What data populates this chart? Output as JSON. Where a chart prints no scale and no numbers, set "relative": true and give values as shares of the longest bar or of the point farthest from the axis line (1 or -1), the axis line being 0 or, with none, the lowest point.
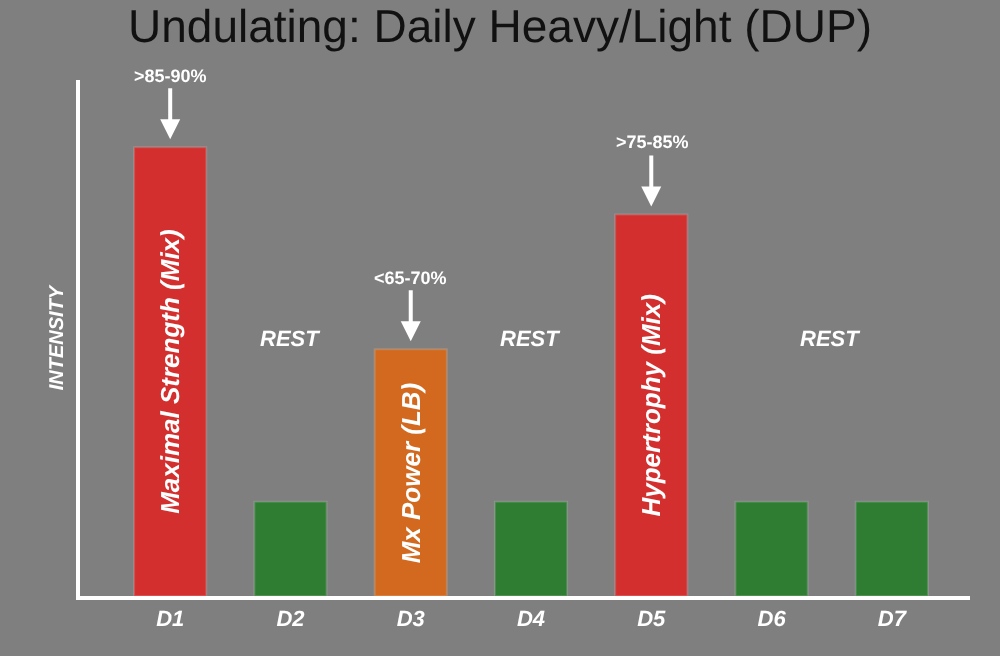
{
  "chart_data": {
    "type": "bar",
    "title": "Undulating: Daily Heavy/Light (DUP)",
    "ylabel": "INTENSITY",
    "relative": true,
    "categories": [
      "D1",
      "D2",
      "D3",
      "D4",
      "D5",
      "D6",
      "D7"
    ],
    "values": [
      1,
      0.21,
      0.55,
      0.21,
      0.85,
      0.21,
      0.21
    ],
    "colors": [
      "#d32f2f",
      "#2e7d32",
      "#d2691e",
      "#2e7d32",
      "#d32f2f",
      "#2e7d32",
      "#2e7d32"
    ],
    "annotations": [
      {
        "text": ">85-90%",
        "x": "D1",
        "y": 1
      },
      {
        "text": "<65-70%",
        "x": "D3",
        "y": 0.55
      },
      {
        "text": ">75-85%",
        "x": "D5",
        "y": 0.85
      },
      "Maximal Strength (Mix)",
      "Mx Power (LB)",
      "Hypertrophy (Mix)",
      "REST",
      "REST",
      "REST"
    ],
    "grid": false
  }
}
